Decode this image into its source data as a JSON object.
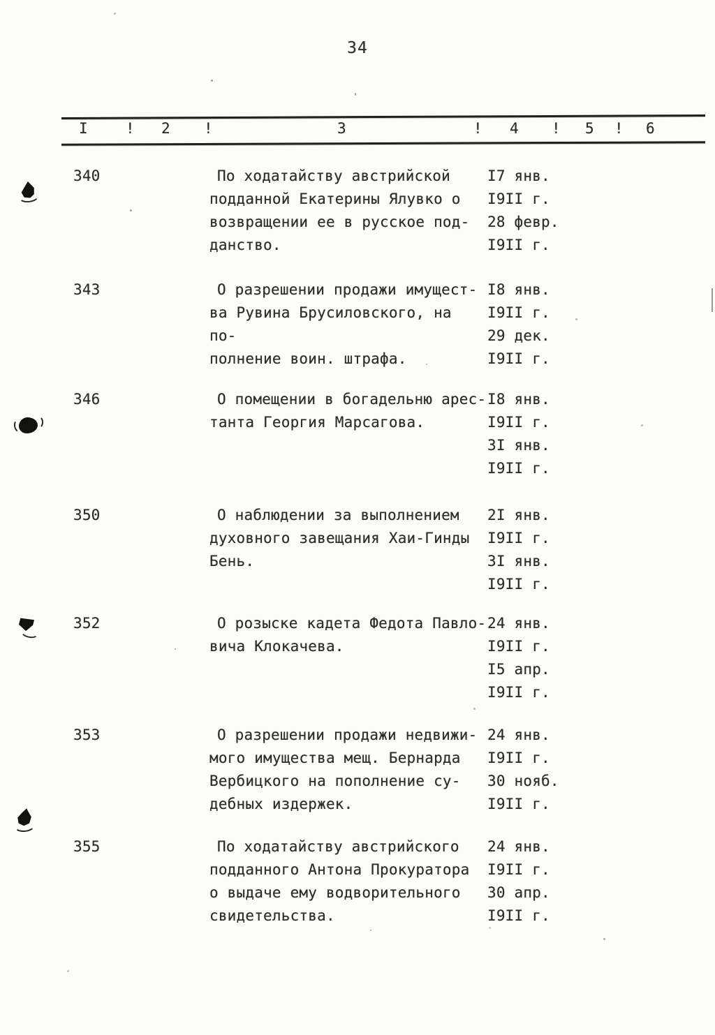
{
  "page": {
    "number": "34"
  },
  "header": {
    "columns": [
      "I",
      "!",
      "2",
      "!",
      "3",
      "!",
      "4",
      "!",
      "5",
      "!",
      "6"
    ]
  },
  "entries": [
    {
      "number": "340",
      "description_lines": [
        "По ходатайству австрийской",
        "подданной Екатерины Ялувко о",
        "возвращении ее в русское под-",
        "данство."
      ],
      "date_lines": [
        "I7 янв.",
        "I9II г.",
        "28 февр.",
        "I9II г."
      ]
    },
    {
      "number": "343",
      "description_lines": [
        "О разрешении продажи имущест-",
        "ва Рувина Брусиловского, на по-",
        "полнение воин. штрафа."
      ],
      "date_lines": [
        "I8 янв.",
        "I9II г.",
        "29 дек.",
        "I9II г."
      ]
    },
    {
      "number": "346",
      "description_lines": [
        "О помещении в богадельню арес-",
        "танта Георгия Марсагова."
      ],
      "date_lines": [
        "I8 янв.",
        "I9II г.",
        "3I янв.",
        "I9II г."
      ]
    },
    {
      "number": "350",
      "description_lines": [
        "О наблюдении за выполнением",
        "духовного завещания Хаи-Гинды",
        "Бень."
      ],
      "date_lines": [
        "2I янв.",
        "I9II г.",
        "3I янв.",
        "I9II г."
      ]
    },
    {
      "number": "352",
      "description_lines": [
        "О розыске кадета Федота Павло-",
        "вича Клокачева."
      ],
      "date_lines": [
        "24 янв.",
        "I9II г.",
        "I5 апр.",
        "I9II г."
      ]
    },
    {
      "number": "353",
      "description_lines": [
        "О разрешении продажи недвижи-",
        "мого имущества мещ. Бернарда",
        "Вербицкого на пополнение су-",
        "дебных издержек."
      ],
      "date_lines": [
        "24 янв.",
        "I9II г.",
        "30 нояб.",
        "I9II г."
      ]
    },
    {
      "number": "355",
      "description_lines": [
        "По ходатайству австрийского",
        "подданного Антона Прокуратора",
        "о выдаче ему водворительного",
        "свидетельства."
      ],
      "date_lines": [
        "24 янв.",
        "I9II г.",
        "30 апр.",
        "I9II г."
      ]
    }
  ]
}
